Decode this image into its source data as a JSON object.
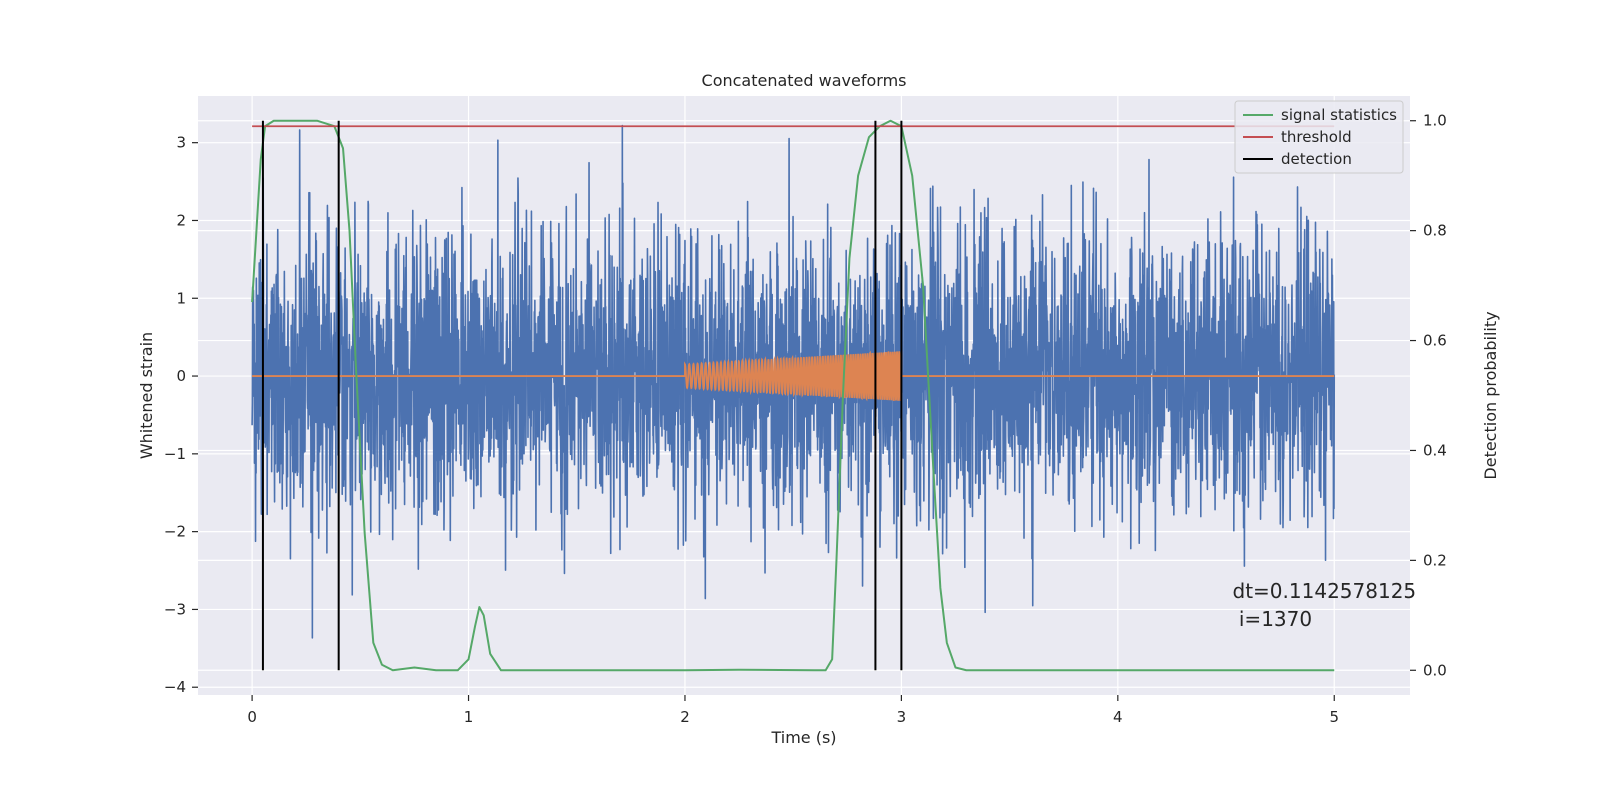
{
  "chart_data": {
    "type": "line",
    "title": "Concatenated waveforms",
    "xlabel": "Time (s)",
    "ylabel_left": "Whitened strain",
    "ylabel_right": "Detection probability",
    "xlim": [
      -0.25,
      5.35
    ],
    "ylim_left": [
      -4.1,
      3.6
    ],
    "ylim_right": [
      -0.045,
      1.045
    ],
    "x_ticks": [
      0,
      1,
      2,
      3,
      4,
      5
    ],
    "y_ticks_left": [
      -4,
      -3,
      -2,
      -1,
      0,
      1,
      2,
      3
    ],
    "y_ticks_right": [
      0.0,
      0.2,
      0.4,
      0.6,
      0.8,
      1.0
    ],
    "y_ticks_right_labels": [
      "0.0",
      "0.2",
      "0.4",
      "0.6",
      "0.8",
      "1.0"
    ],
    "grid": true,
    "legend_position": "top-right",
    "legend": [
      "signal statistics",
      "threshold",
      "detection"
    ],
    "colors": {
      "strain": "#4c72b0",
      "waveform": "#dd8452",
      "signal_statistics": "#55a868",
      "threshold": "#c44e52",
      "detection": "#000000",
      "background": "#eaeaf2",
      "grid": "#ffffff"
    },
    "strain_series": {
      "axis": "left",
      "x_range": [
        0,
        5
      ],
      "amplitude_std": 0.9,
      "min": -3.7,
      "max": 3.45
    },
    "injected_waveform": {
      "axis": "left",
      "x_range": [
        2.0,
        3.0
      ],
      "amplitude_start": 0.15,
      "amplitude_end": 0.32
    },
    "signal_statistics": {
      "axis": "right",
      "x": [
        0.0,
        0.02,
        0.04,
        0.06,
        0.1,
        0.2,
        0.3,
        0.38,
        0.42,
        0.45,
        0.48,
        0.52,
        0.56,
        0.6,
        0.65,
        0.75,
        0.85,
        0.95,
        1.0,
        1.03,
        1.05,
        1.07,
        1.1,
        1.15,
        1.3,
        2.0,
        2.25,
        2.6,
        2.65,
        2.68,
        2.7,
        2.73,
        2.76,
        2.8,
        2.85,
        2.9,
        2.95,
        3.0,
        3.05,
        3.1,
        3.15,
        3.18,
        3.21,
        3.25,
        3.3,
        4.0,
        5.0
      ],
      "y": [
        0.67,
        0.8,
        0.93,
        0.99,
        1.0,
        1.0,
        1.0,
        0.99,
        0.95,
        0.8,
        0.55,
        0.25,
        0.05,
        0.01,
        0.0,
        0.005,
        0.0,
        0.0,
        0.02,
        0.08,
        0.115,
        0.1,
        0.03,
        0.0,
        0.0,
        0.0,
        0.001,
        0.0,
        0.0,
        0.02,
        0.2,
        0.5,
        0.75,
        0.9,
        0.97,
        0.99,
        1.0,
        0.99,
        0.9,
        0.7,
        0.35,
        0.15,
        0.05,
        0.005,
        0.0,
        0.0,
        0.0
      ]
    },
    "threshold": {
      "axis": "right",
      "value": 0.99,
      "x_range": [
        0,
        5
      ]
    },
    "detections": {
      "axis": "right",
      "x": [
        0.05,
        0.4,
        2.88,
        3.0
      ],
      "y_range": [
        0,
        1.0
      ]
    },
    "annotation": {
      "lines": [
        "dt=0.1142578125",
        " i=1370"
      ],
      "x": 4.53,
      "y": -2.85
    }
  }
}
